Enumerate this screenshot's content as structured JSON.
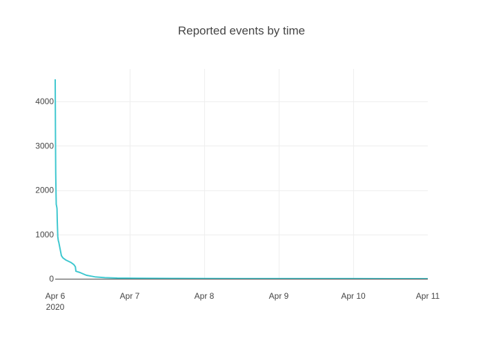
{
  "chart_data": {
    "type": "line",
    "title": "Reported events by time",
    "xlabel": "",
    "ylabel": "",
    "x_tick_labels": [
      "Apr 6",
      "Apr 7",
      "Apr 8",
      "Apr 9",
      "Apr 10",
      "Apr 11"
    ],
    "x_tick_year": "2020",
    "y_tick_labels": [
      "0",
      "1000",
      "2000",
      "3000",
      "4000"
    ],
    "y_tick_values": [
      0,
      1000,
      2000,
      3000,
      4000
    ],
    "xlim": [
      "2020-04-06",
      "2020-04-11"
    ],
    "ylim": [
      0,
      4500
    ],
    "grid": true,
    "legend": "none",
    "series": [
      {
        "color": "#3ec7cf",
        "x": [
          "2020-04-06 00:00",
          "2020-04-06 00:05",
          "2020-04-06 00:10",
          "2020-04-06 00:15",
          "2020-04-06 00:20",
          "2020-04-06 00:30",
          "2020-04-06 00:35",
          "2020-04-06 00:40",
          "2020-04-06 00:50",
          "2020-04-06 01:00",
          "2020-04-06 01:10",
          "2020-04-06 01:30",
          "2020-04-06 02:00",
          "2020-04-06 02:30",
          "2020-04-06 03:30",
          "2020-04-06 05:00",
          "2020-04-06 06:00",
          "2020-04-06 06:30",
          "2020-04-06 06:40",
          "2020-04-06 08:00",
          "2020-04-06 10:00",
          "2020-04-06 13:00",
          "2020-04-06 16:00",
          "2020-04-06 20:00",
          "2020-04-07 02:00",
          "2020-04-07 14:00",
          "2020-04-08 00:00",
          "2020-04-08 12:00",
          "2020-04-09 00:00",
          "2020-04-09 12:00",
          "2020-04-10 00:00",
          "2020-04-10 12:00",
          "2020-04-11 00:00"
        ],
        "values": [
          4500,
          3300,
          2400,
          2000,
          1680,
          1620,
          1580,
          1300,
          950,
          860,
          820,
          700,
          520,
          470,
          420,
          370,
          320,
          270,
          170,
          140,
          80,
          40,
          25,
          15,
          12,
          8,
          5,
          4,
          4,
          3,
          3,
          2,
          2
        ]
      }
    ]
  }
}
